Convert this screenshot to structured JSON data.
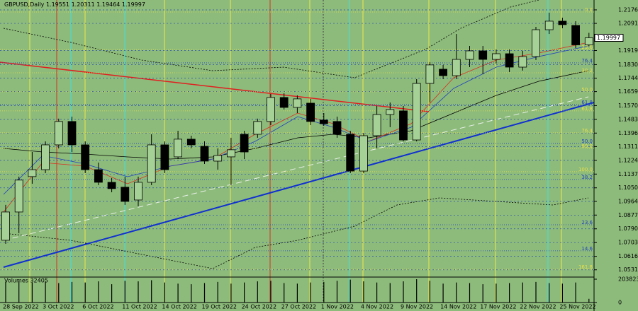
{
  "chart_data": {
    "type": "candlestick",
    "symbol": "GBPUSD,Daily",
    "categories": [
      "28 Sep 2022",
      null,
      null,
      "3 Oct 2022",
      null,
      null,
      "6 Oct 2022",
      null,
      null,
      "11 Oct 2022",
      null,
      null,
      "14 Oct 2022",
      null,
      null,
      "19 Oct 2022",
      null,
      null,
      "24 Oct 2022",
      null,
      null,
      "27 Oct 2022",
      null,
      null,
      "1 Nov 2022",
      null,
      null,
      "4 Nov 2022",
      null,
      null,
      "9 Nov 2022",
      null,
      null,
      "14 Nov 2022",
      null,
      null,
      "17 Nov 2022",
      null,
      null,
      "22 Nov 2022",
      null,
      null,
      "25 Nov 2022",
      null,
      null
    ],
    "open": [
      1.0718,
      1.0897,
      1.1121,
      1.1165,
      1.1322,
      1.147,
      1.1322,
      1.1165,
      1.1085,
      1.1054,
      1.0973,
      1.1085,
      1.1322,
      1.1246,
      1.1358,
      1.1313,
      1.1219,
      1.1246,
      1.1389,
      1.1389,
      1.147,
      1.1622,
      1.1559,
      1.1586,
      1.1479,
      1.147,
      1.1389,
      1.1156,
      1.138,
      1.1514,
      1.1537,
      1.1353,
      1.1711,
      1.1801,
      1.176,
      1.1863,
      1.1917,
      1.1863,
      1.1899,
      1.1814,
      1.1881,
      1.2051,
      1.2105,
      1.2078,
      1.19551
    ],
    "high": [
      1.0942,
      1.1121,
      1.1277,
      1.1344,
      1.1488,
      1.1501,
      1.1344,
      1.121,
      1.1112,
      1.1121,
      1.1121,
      1.1389,
      1.1344,
      1.1411,
      1.138,
      1.1344,
      1.13,
      1.1367,
      1.1411,
      1.1488,
      1.1644,
      1.1649,
      1.1635,
      1.1613,
      1.1523,
      1.1501,
      1.1411,
      1.1398,
      1.1568,
      1.159,
      1.1568,
      1.1738,
      1.1846,
      1.1828,
      1.2024,
      1.1948,
      1.1948,
      1.1926,
      1.1926,
      1.1917,
      1.2069,
      1.2159,
      1.2127,
      1.2105,
      1.20311
    ],
    "low": [
      1.0696,
      1.0763,
      1.1076,
      1.1143,
      1.13,
      1.1277,
      1.1143,
      1.1067,
      1.1022,
      1.0942,
      1.0933,
      1.1067,
      1.1143,
      1.1232,
      1.13,
      1.1201,
      1.1165,
      1.1067,
      1.1232,
      1.1367,
      1.1447,
      1.1546,
      1.1523,
      1.1447,
      1.1443,
      1.1367,
      1.1143,
      1.1143,
      1.13,
      1.1434,
      1.1344,
      1.1344,
      1.159,
      1.1738,
      1.1738,
      1.1814,
      1.1769,
      1.1837,
      1.1783,
      1.1792,
      1.1859,
      1.2024,
      1.206,
      1.1935,
      1.19464
    ],
    "close": [
      1.0897,
      1.1099,
      1.1165,
      1.1322,
      1.147,
      1.1322,
      1.1165,
      1.1085,
      1.1045,
      1.0964,
      1.1085,
      1.1322,
      1.1165,
      1.1358,
      1.1322,
      1.1219,
      1.1255,
      1.1291,
      1.1277,
      1.147,
      1.1622,
      1.1559,
      1.1613,
      1.147,
      1.1456,
      1.1389,
      1.1156,
      1.138,
      1.1514,
      1.1546,
      1.1353,
      1.1711,
      1.1828,
      1.176,
      1.1863,
      1.1917,
      1.1863,
      1.1899,
      1.1814,
      1.1881,
      1.2051,
      1.2105,
      1.2083,
      1.1955,
      1.19997
    ],
    "volumes": [
      180000,
      190000,
      175000,
      185000,
      170000,
      180000,
      175000,
      185000,
      160000,
      190000,
      185000,
      195000,
      175000,
      165000,
      160000,
      170000,
      180000,
      165000,
      175000,
      185000,
      190000,
      170000,
      165000,
      175000,
      180000,
      190000,
      200000,
      185000,
      175000,
      170000,
      185000,
      203823,
      190000,
      165000,
      175000,
      170000,
      160000,
      165000,
      170000,
      175000,
      180000,
      170000,
      165000,
      175000,
      32405
    ],
    "bull_color": "#a6d196",
    "bear_color": "#000000",
    "ylim": [
      1.0494,
      1.2239
    ],
    "yticks": [
      1.21765,
      {
        "value": 1.2091,
        "label": "1.20910"
      },
      {
        "value": 1.1919,
        "label": "1.19190"
      },
      {
        "value": 1.183,
        "label": "1.18300"
      },
      1.17445,
      {
        "value": 1.1659,
        "label": "1.16590"
      },
      1.15705,
      1.14835,
      1.13965,
      {
        "value": 1.1311,
        "label": "1.13110"
      },
      {
        "value": 1.1224,
        "label": "1.12240"
      },
      {
        "value": 1.1137,
        "label": "1.11370"
      },
      {
        "value": 1.105,
        "label": "1.10500"
      },
      1.09645,
      1.08775,
      1.07905,
      1.07035,
      1.06165,
      {
        "value": 1.0531,
        "label": "1.05310"
      }
    ],
    "last_price": 1.19997,
    "volume_title": "Volumes 32405",
    "volume_ylim": [
      0,
      203823
    ],
    "volume_yticks": [
      203823,
      0
    ],
    "levels": [
      {
        "label": "0.0",
        "value": 1.2163,
        "color": "#e8e04a"
      },
      {
        "label": "23.6",
        "value": 1.1926,
        "color": "#e8e04a"
      },
      {
        "label": "76.4",
        "value": 1.1841,
        "color": "#2040c0"
      },
      {
        "label": "38.2",
        "value": 1.1778,
        "color": "#e8e04a"
      },
      {
        "label": "50.0",
        "value": 1.1658,
        "color": "#e8e04a"
      },
      {
        "label": "61.8",
        "value": 1.1577,
        "color": "#2040c0"
      },
      {
        "label": "61.8",
        "value": 1.1537,
        "color": "#e8e04a"
      },
      {
        "label": "76.4",
        "value": 1.1398,
        "color": "#e8e04a"
      },
      {
        "label": "50.0",
        "value": 1.1331,
        "color": "#2040c0"
      },
      {
        "label": "80.0",
        "value": 1.13,
        "color": "#e8e04a"
      },
      {
        "label": "100.0",
        "value": 1.1152,
        "color": "#e8e04a"
      },
      {
        "label": "38.2",
        "value": 1.1103,
        "color": "#2040c0"
      },
      {
        "label": "23.6",
        "value": 1.0816,
        "color": "#2040c0"
      },
      {
        "label": "14.6",
        "value": 1.0651,
        "color": "#2040c0"
      },
      {
        "label": "161.8",
        "value": 1.0534,
        "color": "#e8e04a"
      }
    ]
  }
}
